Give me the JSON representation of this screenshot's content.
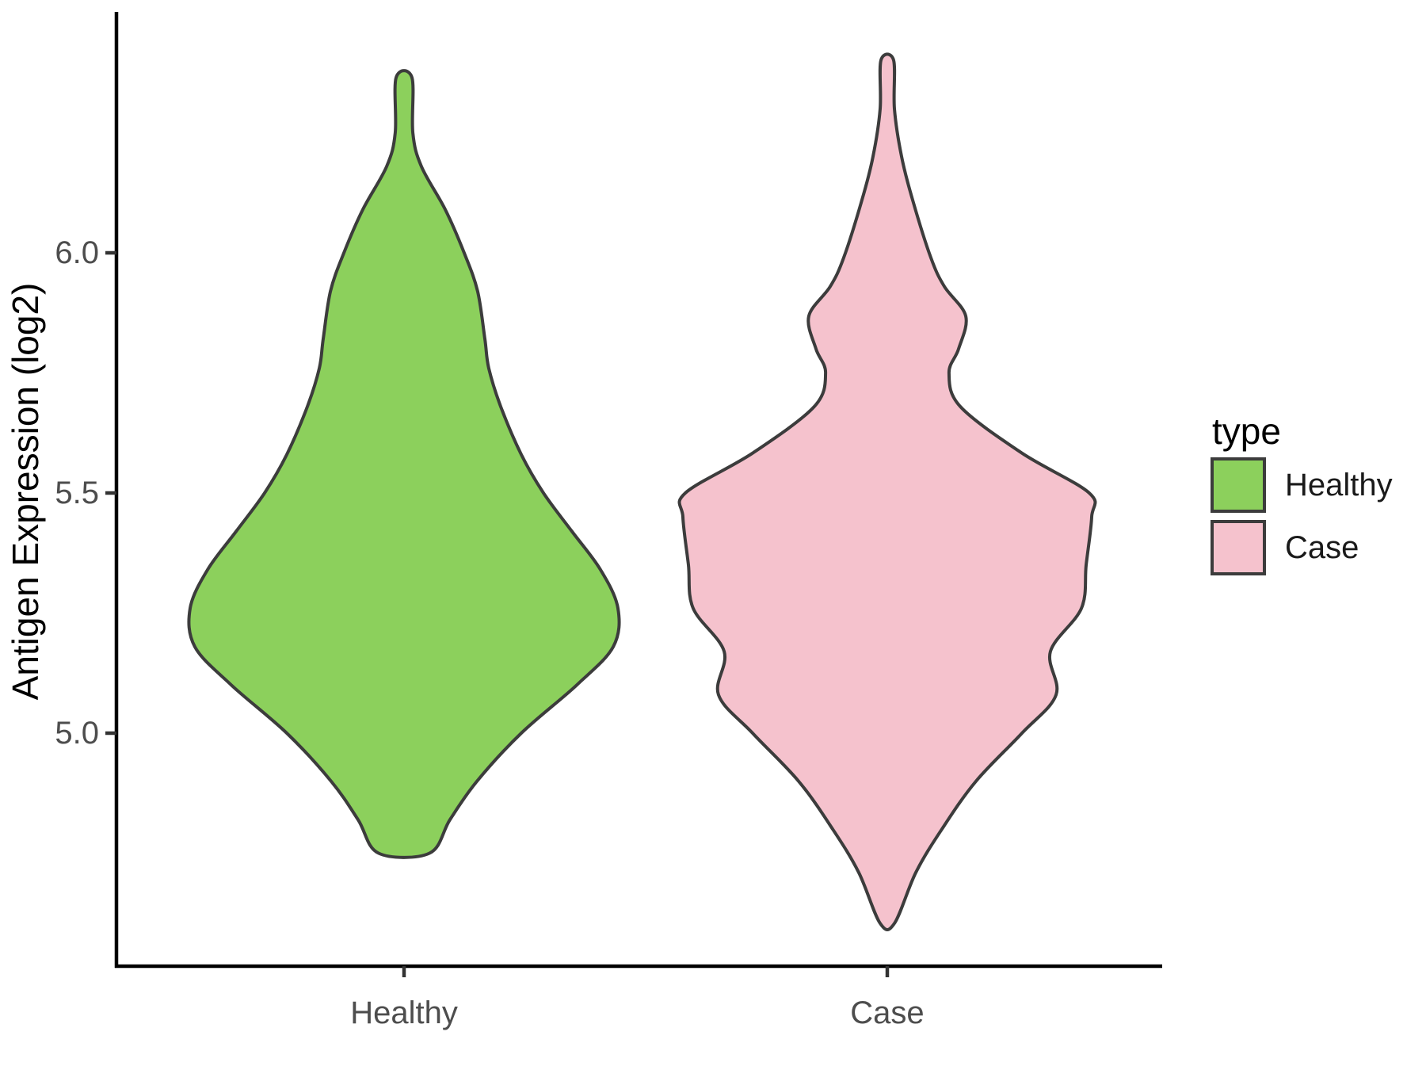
{
  "chart_data": {
    "type": "violin",
    "title": "",
    "xlabel": "",
    "ylabel": "Antigen Expression (log2)",
    "categories": [
      "Healthy",
      "Case"
    ],
    "y_ticks": [
      {
        "value": 5.0,
        "label": "5.0"
      },
      {
        "value": 5.5,
        "label": "5.5"
      },
      {
        "value": 6.0,
        "label": "6.0"
      }
    ],
    "ylim": [
      4.52,
      6.5
    ],
    "grid": false,
    "legend": {
      "title": "type",
      "position": "right",
      "entries": [
        {
          "label": "Healthy",
          "fill": "#8CD05C"
        },
        {
          "label": "Case",
          "fill": "#F5C2CD"
        }
      ]
    },
    "series": [
      {
        "name": "Healthy",
        "fill": "#8CD05C",
        "y_min": 4.75,
        "y_max": 6.37,
        "peak_value": 5.26,
        "profile": [
          [
            6.365,
            0.037
          ],
          [
            6.25,
            0.041
          ],
          [
            6.18,
            0.081
          ],
          [
            6.09,
            0.193
          ],
          [
            6.0,
            0.281
          ],
          [
            5.92,
            0.344
          ],
          [
            5.82,
            0.378
          ],
          [
            5.76,
            0.396
          ],
          [
            5.68,
            0.452
          ],
          [
            5.58,
            0.548
          ],
          [
            5.5,
            0.652
          ],
          [
            5.42,
            0.785
          ],
          [
            5.34,
            0.919
          ],
          [
            5.26,
            1.0
          ],
          [
            5.18,
            0.978
          ],
          [
            5.1,
            0.807
          ],
          [
            5.0,
            0.548
          ],
          [
            4.9,
            0.341
          ],
          [
            4.82,
            0.215
          ],
          [
            4.75,
            0.119
          ]
        ]
      },
      {
        "name": "Case",
        "fill": "#F5C2CD",
        "y_min": 4.6,
        "y_max": 6.4,
        "peak_value": 5.45,
        "profile": [
          [
            6.401,
            0.031
          ],
          [
            6.3,
            0.035
          ],
          [
            6.2,
            0.07
          ],
          [
            6.11,
            0.124
          ],
          [
            5.99,
            0.213
          ],
          [
            5.93,
            0.279
          ],
          [
            5.868,
            0.384
          ],
          [
            5.8,
            0.349
          ],
          [
            5.75,
            0.302
          ],
          [
            5.68,
            0.357
          ],
          [
            5.583,
            0.659
          ],
          [
            5.5,
            0.988
          ],
          [
            5.45,
            1.0
          ],
          [
            5.35,
            0.973
          ],
          [
            5.26,
            0.95
          ],
          [
            5.17,
            0.798
          ],
          [
            5.08,
            0.826
          ],
          [
            5.0,
            0.659
          ],
          [
            4.9,
            0.434
          ],
          [
            4.8,
            0.267
          ],
          [
            4.71,
            0.14
          ],
          [
            4.604,
            0.035
          ]
        ]
      }
    ]
  },
  "style": {
    "background": "#FFFFFF",
    "axis_color": "#000000",
    "tick_color": "#333333",
    "tick_label_color": "#4D4D4D",
    "axis_title_color": "#000000",
    "legend_title_color": "#000000",
    "legend_label_color": "#1A1A1A",
    "violin_outline_color": "#3C3C3C"
  }
}
